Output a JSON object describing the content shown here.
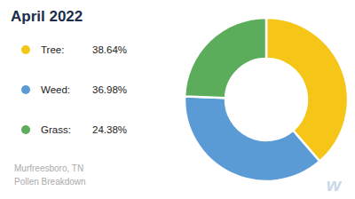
{
  "chart_data": {
    "type": "donut",
    "title": "April 2022",
    "subtitle": "Murfreesboro, TN\nPollen Breakdown",
    "categories": [
      "Tree:",
      "Weed:",
      "Grass:"
    ],
    "values": [
      38.64,
      36.98,
      24.38
    ],
    "value_labels": [
      "38.64%",
      "36.98%",
      "24.38%"
    ],
    "colors": [
      "#F5C518",
      "#5B9BD5",
      "#5BAD5B"
    ],
    "annotations": [
      "w"
    ]
  }
}
